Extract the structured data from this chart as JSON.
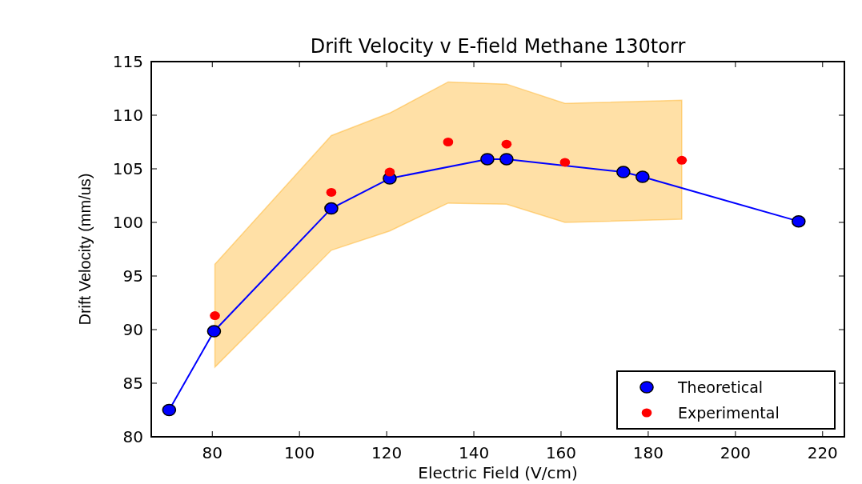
{
  "chart_data": {
    "type": "scatter",
    "title": "Drift Velocity v E-field Methane 130torr",
    "xlabel": "Electric Field (V/cm)",
    "ylabel": "Drift Velocity (mm/us)",
    "xlim": [
      66,
      225
    ],
    "xticks": [
      80,
      100,
      120,
      140,
      160,
      180,
      200,
      220
    ],
    "ylim": [
      80,
      115
    ],
    "yticks": [
      80,
      85,
      90,
      95,
      100,
      105,
      110,
      115
    ],
    "marker": "circle",
    "legend": "bottom right",
    "grid": false,
    "series": [
      {
        "name": "Theoretical",
        "type": "line",
        "color": "#0000ff",
        "x": [
          70.1,
          80.4,
          107.3,
          120.7,
          143.1,
          147.5,
          174.3,
          178.7,
          214.5
        ],
        "values": [
          82.5,
          89.85,
          101.3,
          104.1,
          105.9,
          105.9,
          104.7,
          104.25,
          100.1
        ]
      },
      {
        "name": "Experimental",
        "type": "scatter",
        "color": "#ff0000",
        "x": [
          80.6,
          107.3,
          120.7,
          134.1,
          147.5,
          160.9,
          187.7
        ],
        "values": [
          91.3,
          102.8,
          104.7,
          107.5,
          107.3,
          105.6,
          105.8
        ],
        "lower": [
          86.5,
          97.4,
          99.2,
          101.8,
          101.7,
          100,
          100.3
        ],
        "upper": [
          96.1,
          108.1,
          110.2,
          113.1,
          112.9,
          111.1,
          111.4
        ]
      }
    ]
  }
}
